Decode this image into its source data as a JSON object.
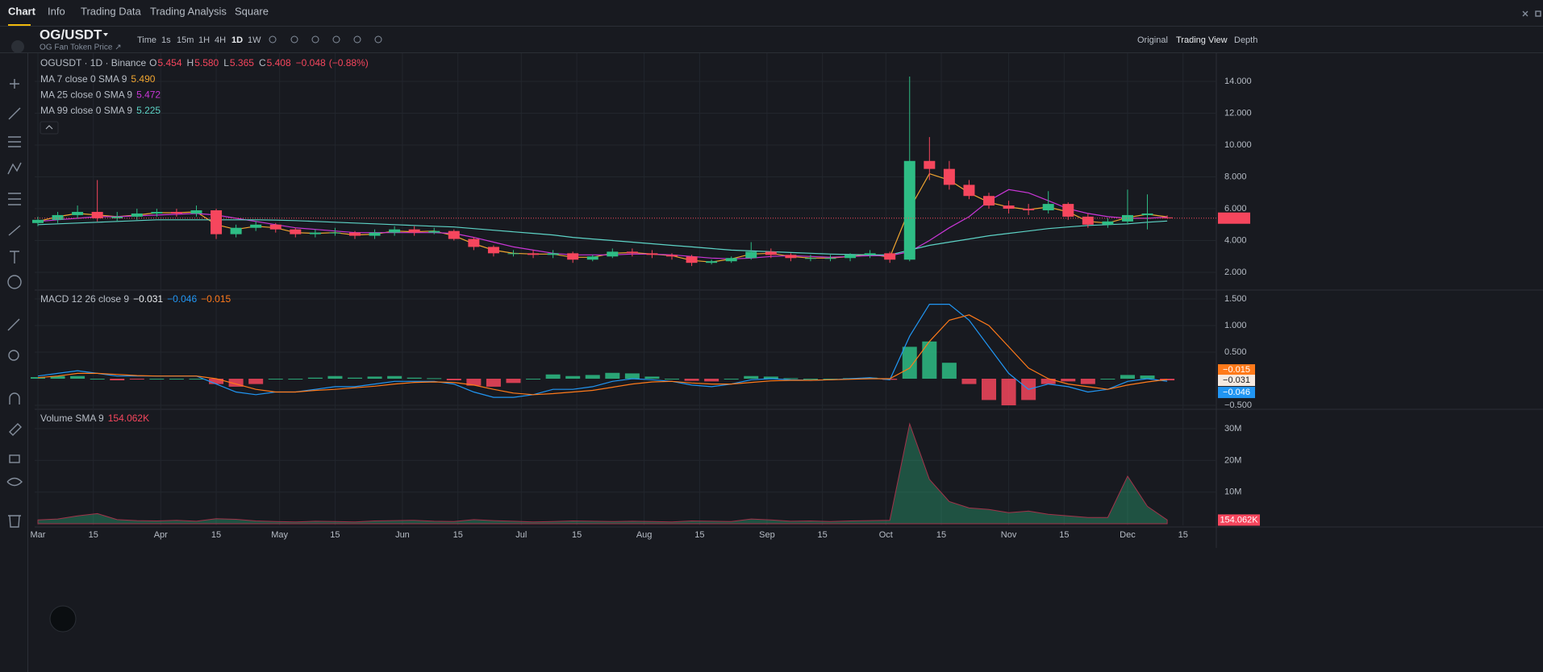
{
  "ui": {
    "tabs": [
      "Chart",
      "Info",
      "Trading Data",
      "Trading Analysis",
      "Square"
    ],
    "symbol": "OG/USDT",
    "subtitle": "OG Fan Token Price ↗",
    "intervals": [
      "Time",
      "1s",
      "15m",
      "1H",
      "4H",
      "1D",
      "1W"
    ],
    "views": [
      "Original",
      "Trading View",
      "Depth"
    ]
  },
  "chart_data": [
    {
      "type": "candlestick",
      "title": "OGUSDT · 1D · Binance",
      "x": [
        0,
        5,
        10,
        15,
        20,
        25,
        30,
        35,
        40,
        45,
        50,
        55,
        60,
        65,
        70,
        75,
        80,
        85,
        90,
        95,
        100,
        105,
        110,
        115,
        120,
        125,
        130,
        135,
        140,
        145,
        150,
        155,
        160,
        165,
        170,
        175,
        180,
        185,
        190,
        195,
        200,
        205,
        210,
        215,
        220,
        225,
        230,
        235,
        240,
        245,
        250,
        255,
        260,
        265,
        270,
        275,
        280,
        285
      ],
      "open": [
        5.1,
        5.3,
        5.6,
        5.8,
        5.4,
        5.5,
        5.7,
        5.8,
        5.7,
        5.9,
        4.4,
        4.8,
        5.0,
        4.7,
        4.4,
        4.5,
        4.5,
        4.3,
        4.5,
        4.7,
        4.5,
        4.6,
        4.1,
        3.6,
        3.2,
        3.2,
        3.1,
        3.2,
        2.8,
        3.0,
        3.3,
        3.2,
        3.1,
        3.0,
        2.6,
        2.7,
        2.9,
        3.3,
        3.1,
        2.9,
        2.9,
        2.9,
        3.1,
        3.2,
        2.8,
        9.0,
        8.5,
        7.5,
        6.8,
        6.2,
        6.0,
        5.9,
        6.3,
        5.5,
        5.0,
        5.2,
        5.6,
        5.454
      ],
      "high": [
        5.5,
        5.8,
        6.2,
        7.8,
        5.8,
        6.0,
        6.0,
        6.0,
        6.2,
        6.0,
        5.0,
        5.2,
        5.1,
        4.8,
        4.7,
        4.8,
        4.6,
        4.7,
        4.9,
        4.9,
        4.8,
        4.7,
        4.2,
        3.7,
        3.4,
        3.4,
        3.4,
        3.3,
        3.1,
        3.5,
        3.5,
        3.4,
        3.2,
        3.1,
        2.8,
        3.0,
        3.9,
        3.5,
        3.2,
        3.1,
        3.1,
        3.2,
        3.4,
        3.3,
        14.3,
        10.5,
        9.0,
        7.8,
        7.0,
        6.5,
        6.3,
        7.1,
        6.4,
        5.7,
        5.4,
        7.2,
        6.9,
        5.58
      ],
      "low": [
        4.9,
        5.1,
        5.4,
        5.2,
        5.2,
        5.3,
        5.5,
        5.5,
        5.5,
        4.1,
        4.2,
        4.6,
        4.5,
        4.2,
        4.2,
        4.3,
        4.1,
        4.1,
        4.3,
        4.3,
        4.4,
        4.0,
        3.4,
        3.0,
        3.0,
        2.9,
        2.9,
        2.6,
        2.7,
        2.9,
        3.0,
        2.9,
        2.8,
        2.4,
        2.5,
        2.6,
        2.8,
        2.9,
        2.7,
        2.7,
        2.7,
        2.7,
        2.9,
        2.6,
        2.7,
        7.8,
        7.2,
        6.6,
        6.0,
        5.7,
        5.6,
        5.7,
        5.3,
        4.8,
        4.8,
        5.0,
        4.7,
        5.365
      ],
      "close": [
        5.3,
        5.6,
        5.8,
        5.4,
        5.5,
        5.7,
        5.8,
        5.7,
        5.9,
        4.4,
        4.8,
        5.0,
        4.7,
        4.4,
        4.5,
        4.5,
        4.3,
        4.5,
        4.7,
        4.5,
        4.6,
        4.1,
        3.6,
        3.2,
        3.2,
        3.1,
        3.2,
        2.8,
        3.0,
        3.3,
        3.2,
        3.1,
        3.0,
        2.6,
        2.7,
        2.9,
        3.3,
        3.1,
        2.9,
        2.9,
        2.9,
        3.1,
        3.2,
        2.8,
        9.0,
        8.5,
        7.5,
        6.8,
        6.2,
        6.0,
        5.9,
        6.3,
        5.5,
        5.0,
        5.2,
        5.6,
        5.7,
        5.408
      ],
      "ohlc_names": [
        "O",
        "H",
        "L",
        "C"
      ],
      "last_labels": [
        "5.454",
        "5.580",
        "5.365",
        "5.408"
      ],
      "change": {
        "value": -0.048,
        "label": "−0.048"
      },
      "change_pct": {
        "value": -0.88,
        "label": "(−0.88%)"
      },
      "up_color": "#2ebd85",
      "down_color": "#f6465d",
      "lines": [
        {
          "name": "MA 7 close 0 SMA 9",
          "color": "#f0a530",
          "value_label": "5.490",
          "values": [
            5.2,
            5.5,
            5.7,
            5.6,
            5.5,
            5.6,
            5.75,
            5.75,
            5.8,
            5.0,
            4.7,
            4.9,
            4.8,
            4.5,
            4.45,
            4.5,
            4.35,
            4.4,
            4.6,
            4.55,
            4.6,
            4.3,
            3.8,
            3.4,
            3.2,
            3.15,
            3.15,
            2.95,
            2.95,
            3.2,
            3.25,
            3.15,
            3.05,
            2.75,
            2.65,
            2.85,
            3.15,
            3.2,
            3.0,
            2.9,
            2.9,
            3.0,
            3.15,
            2.95,
            6.0,
            8.2,
            7.8,
            7.0,
            6.4,
            6.1,
            5.95,
            6.1,
            5.8,
            5.2,
            5.1,
            5.45,
            5.65,
            5.49
          ]
        },
        {
          "name": "MA 25 close 0 SMA 9",
          "color": "#c936d6",
          "value_label": "5.472",
          "values": [
            5.2,
            5.3,
            5.4,
            5.5,
            5.5,
            5.55,
            5.6,
            5.65,
            5.7,
            5.6,
            5.4,
            5.2,
            5.0,
            4.8,
            4.7,
            4.6,
            4.5,
            4.5,
            4.5,
            4.5,
            4.5,
            4.45,
            4.2,
            3.9,
            3.6,
            3.4,
            3.2,
            3.1,
            3.1,
            3.1,
            3.15,
            3.15,
            3.1,
            3.0,
            2.9,
            2.85,
            2.9,
            3.0,
            3.05,
            3.0,
            2.95,
            3.0,
            3.05,
            3.05,
            3.3,
            4.0,
            4.8,
            5.5,
            6.5,
            7.2,
            7.0,
            6.5,
            6.0,
            5.7,
            5.5,
            5.4,
            5.4,
            5.472
          ]
        },
        {
          "name": "MA 99 close 0 SMA 9",
          "color": "#5dd3c6",
          "value_label": "5.225",
          "values": [
            5.0,
            5.05,
            5.1,
            5.15,
            5.2,
            5.25,
            5.3,
            5.3,
            5.3,
            5.3,
            5.3,
            5.3,
            5.28,
            5.25,
            5.2,
            5.15,
            5.1,
            5.05,
            5.0,
            4.95,
            4.9,
            4.85,
            4.75,
            4.65,
            4.55,
            4.45,
            4.35,
            4.2,
            4.1,
            4.0,
            3.9,
            3.8,
            3.7,
            3.6,
            3.5,
            3.4,
            3.35,
            3.3,
            3.25,
            3.2,
            3.15,
            3.12,
            3.1,
            3.1,
            3.4,
            3.7,
            3.9,
            4.1,
            4.3,
            4.45,
            4.6,
            4.75,
            4.85,
            4.95,
            5.0,
            5.05,
            5.15,
            5.225
          ]
        }
      ],
      "xlim": [
        -0.81,
        297.4
      ],
      "ylim": [
        0.99,
        15.77
      ],
      "yticks": [
        {
          "value": 2,
          "label": "2.000"
        },
        {
          "value": 4,
          "label": "4.000"
        },
        {
          "value": 6,
          "label": "6.000"
        },
        {
          "value": 8,
          "label": "8.000"
        },
        {
          "value": 10,
          "label": "10.000"
        },
        {
          "value": 12,
          "label": "12.000"
        },
        {
          "value": 14,
          "label": "14.000"
        }
      ],
      "grid": true
    },
    {
      "type": "macd",
      "title": "MACD 12 26 close 9",
      "x": [
        0,
        5,
        10,
        15,
        20,
        25,
        30,
        35,
        40,
        45,
        50,
        55,
        60,
        65,
        70,
        75,
        80,
        85,
        90,
        95,
        100,
        105,
        110,
        115,
        120,
        125,
        130,
        135,
        140,
        145,
        150,
        155,
        160,
        165,
        170,
        175,
        180,
        185,
        190,
        195,
        200,
        205,
        210,
        215,
        220,
        225,
        230,
        235,
        240,
        245,
        250,
        255,
        260,
        265,
        270,
        275,
        280,
        285
      ],
      "histogram": {
        "up_color": "#2ebd85",
        "down_color": "#f6465d",
        "value_label": "−0.031",
        "values": [
          0.03,
          0.05,
          0.05,
          0.0,
          -0.03,
          -0.01,
          0.0,
          0.0,
          0.0,
          -0.1,
          -0.15,
          -0.1,
          0.0,
          0.0,
          0.02,
          0.05,
          0.02,
          0.04,
          0.05,
          0.02,
          0.01,
          -0.03,
          -0.13,
          -0.15,
          -0.08,
          0.0,
          0.08,
          0.05,
          0.07,
          0.11,
          0.1,
          0.04,
          0.0,
          -0.04,
          -0.05,
          0.0,
          0.05,
          0.04,
          0.01,
          0.0,
          0.0,
          0.01,
          0.02,
          -0.02,
          0.6,
          0.7,
          0.3,
          -0.1,
          -0.4,
          -0.5,
          -0.4,
          -0.1,
          -0.05,
          -0.1,
          0.0,
          0.07,
          0.06,
          -0.031
        ]
      },
      "macd": {
        "color": "#2196f3",
        "value_label": "−0.046",
        "values": [
          0.05,
          0.1,
          0.15,
          0.1,
          0.05,
          0.05,
          0.05,
          0.05,
          0.05,
          -0.1,
          -0.25,
          -0.3,
          -0.25,
          -0.25,
          -0.2,
          -0.15,
          -0.15,
          -0.1,
          -0.05,
          -0.05,
          -0.05,
          -0.1,
          -0.25,
          -0.35,
          -0.35,
          -0.3,
          -0.2,
          -0.2,
          -0.15,
          -0.05,
          0.0,
          -0.02,
          -0.05,
          -0.12,
          -0.15,
          -0.1,
          -0.02,
          0.0,
          -0.02,
          -0.03,
          -0.02,
          0.0,
          0.02,
          -0.02,
          0.8,
          1.4,
          1.4,
          1.1,
          0.6,
          0.1,
          -0.2,
          -0.1,
          -0.15,
          -0.25,
          -0.2,
          -0.05,
          0.0,
          -0.046
        ]
      },
      "signal": {
        "color": "#ff7a1a",
        "value_label": "−0.015",
        "values": [
          0.02,
          0.05,
          0.1,
          0.1,
          0.08,
          0.06,
          0.05,
          0.05,
          0.05,
          0.0,
          -0.1,
          -0.2,
          -0.25,
          -0.25,
          -0.22,
          -0.2,
          -0.17,
          -0.14,
          -0.1,
          -0.07,
          -0.06,
          -0.07,
          -0.12,
          -0.2,
          -0.27,
          -0.3,
          -0.28,
          -0.25,
          -0.22,
          -0.16,
          -0.1,
          -0.06,
          -0.05,
          -0.08,
          -0.1,
          -0.1,
          -0.07,
          -0.04,
          -0.03,
          -0.03,
          -0.02,
          -0.01,
          0.0,
          0.0,
          0.2,
          0.7,
          1.1,
          1.2,
          1.0,
          0.6,
          0.2,
          0.0,
          -0.1,
          -0.15,
          -0.2,
          -0.12,
          -0.06,
          -0.015
        ]
      },
      "xlim": [
        -0.81,
        297.4
      ],
      "ylim": [
        -0.545,
        1.636
      ],
      "yticks": [
        {
          "value": -0.5,
          "label": "−0.500"
        },
        {
          "value": 0.5,
          "label": "0.500"
        },
        {
          "value": 1,
          "label": "1.000"
        },
        {
          "value": 1.5,
          "label": "1.500"
        }
      ],
      "grid": true
    },
    {
      "type": "area",
      "title": "Volume SMA 9",
      "color": "#2ebd85",
      "x": [
        0,
        5,
        10,
        15,
        20,
        25,
        30,
        35,
        40,
        45,
        50,
        55,
        60,
        65,
        70,
        75,
        80,
        85,
        90,
        95,
        100,
        105,
        110,
        115,
        120,
        125,
        130,
        135,
        140,
        145,
        150,
        155,
        160,
        165,
        170,
        175,
        180,
        185,
        190,
        195,
        200,
        205,
        210,
        215,
        220,
        225,
        230,
        235,
        240,
        245,
        250,
        255,
        260,
        265,
        270,
        275,
        280,
        285
      ],
      "values": [
        1200000,
        1500000,
        2500000,
        3200000,
        1300000,
        1000000,
        900000,
        1100000,
        800000,
        1600000,
        1400000,
        900000,
        700000,
        600000,
        800000,
        700000,
        600000,
        900000,
        1000000,
        1100000,
        800000,
        700000,
        1300000,
        1000000,
        800000,
        600000,
        700000,
        900000,
        800000,
        700000,
        800000,
        700000,
        600000,
        900000,
        800000,
        700000,
        1500000,
        1200000,
        800000,
        900000,
        700000,
        900000,
        1000000,
        1100000,
        31500000,
        14000000,
        7000000,
        5000000,
        4500000,
        3500000,
        4000000,
        3000000,
        2500000,
        2000000,
        2000000,
        15000000,
        5500000,
        1200000
      ],
      "sma": {
        "value": 154062,
        "label": "154.062K"
      },
      "xlim": [
        -0.81,
        297.4
      ],
      "ylim": [
        -500000,
        35600000
      ],
      "yticks": [
        {
          "value": 10000000,
          "label": "10M"
        },
        {
          "value": 20000000,
          "label": "20M"
        },
        {
          "value": 30000000,
          "label": "30M"
        }
      ],
      "xticks": [
        {
          "value": 0,
          "label": "Mar"
        },
        {
          "value": 14,
          "label": "15"
        },
        {
          "value": 31,
          "label": "Apr"
        },
        {
          "value": 45,
          "label": "15"
        },
        {
          "value": 61,
          "label": "May"
        },
        {
          "value": 75,
          "label": "15"
        },
        {
          "value": 92,
          "label": "Jun"
        },
        {
          "value": 106,
          "label": "15"
        },
        {
          "value": 122,
          "label": "Jul"
        },
        {
          "value": 136,
          "label": "15"
        },
        {
          "value": 153,
          "label": "Aug"
        },
        {
          "value": 167,
          "label": "15"
        },
        {
          "value": 184,
          "label": "Sep"
        },
        {
          "value": 198,
          "label": "15"
        },
        {
          "value": 214,
          "label": "Oct"
        },
        {
          "value": 228,
          "label": "15"
        },
        {
          "value": 245,
          "label": "Nov"
        },
        {
          "value": 259,
          "label": "15"
        },
        {
          "value": 275,
          "label": "Dec"
        },
        {
          "value": 289,
          "label": "15"
        }
      ],
      "grid": true
    }
  ]
}
